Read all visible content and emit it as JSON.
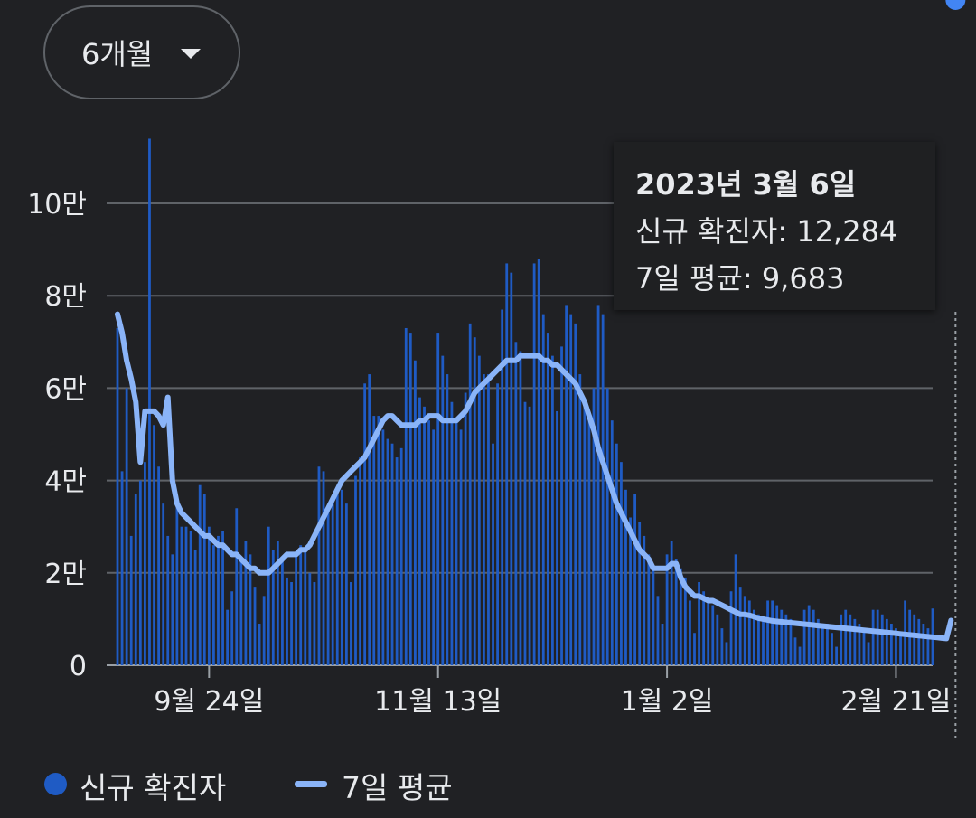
{
  "range_selector": {
    "label": "6개월",
    "icon": "caret-down-icon"
  },
  "tooltip": {
    "date": "2023년 3월 6일",
    "cases_label": "신규 확진자",
    "cases_value": "12,284",
    "avg_label": "7일 평균",
    "avg_value": "9,683"
  },
  "legend": {
    "cases": "신규 확진자",
    "avg": "7일 평균"
  },
  "colors": {
    "bars": "#1f5bc4",
    "line": "#8ab4f8",
    "grid": "#5f6368",
    "background": "#202124"
  },
  "chart_data": {
    "type": "bar",
    "ylim": [
      0,
      110000
    ],
    "yticks": [
      {
        "value": 0,
        "label": "0"
      },
      {
        "value": 20000,
        "label": "2만"
      },
      {
        "value": 40000,
        "label": "4만"
      },
      {
        "value": 60000,
        "label": "6만"
      },
      {
        "value": 80000,
        "label": "8만"
      },
      {
        "value": 100000,
        "label": "10만"
      }
    ],
    "x_start_date": "2022-09-04",
    "xticks": [
      {
        "day": 20,
        "label": "9월 24일"
      },
      {
        "day": 70,
        "label": "11월 13일"
      },
      {
        "day": 120,
        "label": "1월 2일"
      },
      {
        "day": 170,
        "label": "2월 21일"
      }
    ],
    "selected_day": 183,
    "series": [
      {
        "name": "신규 확진자",
        "kind": "bar",
        "values": [
          73000,
          42000,
          60000,
          28000,
          37000,
          40000,
          44000,
          114000,
          52000,
          43000,
          35000,
          28000,
          24000,
          36000,
          30000,
          30000,
          29000,
          25000,
          39000,
          37000,
          30000,
          26000,
          28000,
          29000,
          12000,
          16000,
          34000,
          23000,
          27000,
          24000,
          17000,
          9000,
          15000,
          30000,
          25000,
          27000,
          23000,
          19000,
          18000,
          24000,
          26000,
          25000,
          20000,
          18000,
          43000,
          42000,
          34000,
          36000,
          37000,
          38000,
          35000,
          18000,
          41000,
          45000,
          61000,
          63000,
          54000,
          54000,
          51000,
          49000,
          48000,
          45000,
          47000,
          73000,
          72000,
          66000,
          58000,
          56000,
          53000,
          51000,
          72000,
          67000,
          63000,
          57000,
          53000,
          51000,
          59000,
          74000,
          71000,
          67000,
          63000,
          63000,
          48000,
          61000,
          77000,
          87000,
          85000,
          70000,
          68000,
          57000,
          56000,
          87000,
          88000,
          76000,
          72000,
          67000,
          55000,
          69000,
          78000,
          76000,
          74000,
          63000,
          56000,
          53000,
          60000,
          78000,
          76000,
          60000,
          53000,
          48000,
          44000,
          38000,
          32000,
          37000,
          31000,
          28000,
          24000,
          21000,
          15000,
          9000,
          24000,
          27000,
          23000,
          21000,
          19000,
          14000,
          7000,
          18000,
          16000,
          14000,
          13000,
          11000,
          8000,
          5000,
          16000,
          24000,
          17000,
          15000,
          14000,
          12000,
          11000,
          10000,
          14000,
          14000,
          13000,
          12000,
          11000,
          10000,
          6000,
          4000,
          12000,
          13000,
          12000,
          10000,
          9000,
          9000,
          7000,
          4000,
          11000,
          12000,
          11000,
          10000,
          9000,
          8000,
          5000,
          12000,
          12000,
          11000,
          10000,
          9000,
          8000,
          7000,
          14000,
          12000,
          11000,
          10000,
          9000,
          8000,
          12284
        ]
      },
      {
        "name": "7일 평균",
        "kind": "line",
        "values": [
          76000,
          72000,
          66000,
          62000,
          57000,
          44000,
          55000,
          55000,
          55000,
          54000,
          52000,
          58000,
          40000,
          35000,
          33000,
          32000,
          31000,
          30000,
          29000,
          28000,
          28000,
          27000,
          26000,
          26000,
          25000,
          24000,
          24000,
          23000,
          22000,
          21000,
          21000,
          20000,
          20000,
          20000,
          21000,
          22000,
          23000,
          24000,
          24000,
          24000,
          25000,
          25000,
          26000,
          28000,
          30000,
          32000,
          34000,
          36000,
          38000,
          40000,
          41000,
          42000,
          43000,
          44000,
          45000,
          47000,
          49000,
          51000,
          53000,
          54000,
          54000,
          53000,
          52000,
          52000,
          52000,
          52000,
          53000,
          53000,
          54000,
          54000,
          54000,
          53000,
          53000,
          53000,
          53000,
          54000,
          55000,
          57000,
          59000,
          60000,
          61000,
          62000,
          63000,
          64000,
          65000,
          66000,
          66000,
          66000,
          67000,
          67000,
          67000,
          67000,
          67000,
          66000,
          66000,
          65000,
          65000,
          64000,
          63000,
          62000,
          61000,
          59000,
          57000,
          54000,
          51000,
          47000,
          44000,
          41000,
          38000,
          35000,
          33000,
          31000,
          29000,
          27000,
          25000,
          24000,
          23000,
          21000,
          21000,
          21000,
          21000,
          22000,
          22000,
          19000,
          17000,
          16000,
          15000,
          15000,
          14500,
          14000,
          14000,
          13500,
          13000,
          12500,
          12000,
          11500,
          11000,
          11000,
          10800,
          10500,
          10200,
          10000,
          9800,
          9600,
          9500,
          9400,
          9300,
          9200,
          9100,
          9000,
          8900,
          8800,
          8700,
          8600,
          8500,
          8400,
          8300,
          8200,
          8100,
          8000,
          7900,
          7800,
          7700,
          7600,
          7500,
          7400,
          7300,
          7200,
          7100,
          7000,
          6900,
          6800,
          6700,
          6600,
          6500,
          6400,
          6300,
          6200,
          6100,
          6000,
          5900,
          5800,
          9683
        ]
      }
    ]
  }
}
